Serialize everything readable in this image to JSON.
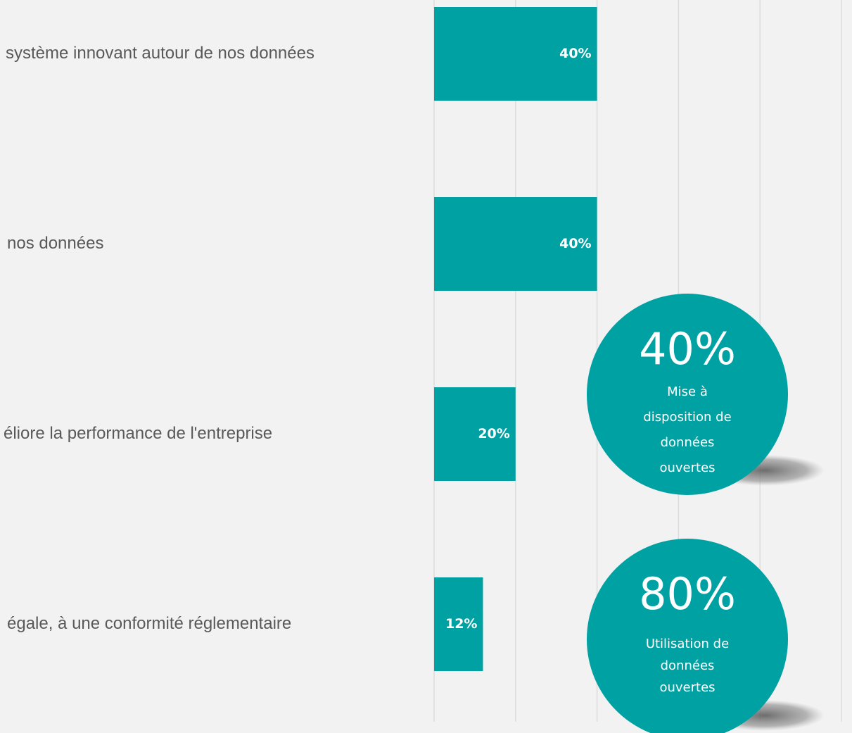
{
  "chart_data": {
    "type": "bar",
    "orientation": "horizontal",
    "categories": [
      "système innovant autour de nos données",
      "nos données",
      "éliore la performance de l'entreprise",
      "égale, à une conformité réglementaire"
    ],
    "values": [
      40,
      40,
      20,
      12
    ],
    "value_labels": [
      "40%",
      "40%",
      "20%",
      "12%"
    ],
    "color": "#00a1a3",
    "xlim": [
      0,
      100
    ],
    "xticks": [
      0,
      20,
      40,
      60,
      80,
      100
    ],
    "grid": true,
    "callouts": [
      {
        "value": 40,
        "label": "40%",
        "text": [
          "Mise à",
          "disposition de",
          "données",
          "ouvertes"
        ]
      },
      {
        "value": 80,
        "label": "80%",
        "text": [
          "Utilisation de",
          "données",
          "ouvertes"
        ]
      }
    ]
  }
}
